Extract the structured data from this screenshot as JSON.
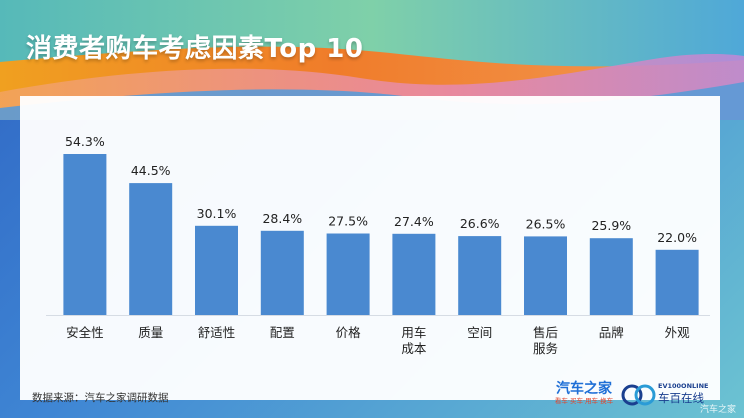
{
  "header": {
    "title": "消费者购车考虑因素Top 10"
  },
  "chart_data": {
    "type": "bar",
    "categories": [
      "安全性",
      "质量",
      "舒适性",
      "配置",
      "价格",
      "用车\n成本",
      "空间",
      "售后\n服务",
      "品牌",
      "外观"
    ],
    "values": [
      54.3,
      44.5,
      30.1,
      28.4,
      27.5,
      27.4,
      26.6,
      26.5,
      25.9,
      22.0
    ],
    "value_labels": [
      "54.3%",
      "44.5%",
      "30.1%",
      "28.4%",
      "27.5%",
      "27.4%",
      "26.6%",
      "26.5%",
      "25.9%",
      "22.0%"
    ],
    "title": "消费者购车考虑因素Top 10",
    "xlabel": "",
    "ylabel": "",
    "unit": "%",
    "ylim": [
      0,
      60
    ],
    "grid": false,
    "colors": {
      "bar": "#4a89d0"
    }
  },
  "footer": {
    "source": "数据来源：汽车之家调研数据"
  },
  "logos": {
    "autohome": {
      "name": "汽车之家",
      "tagline": "看车·买车·用车·换车"
    },
    "chebai": {
      "en": "EV100ONLINE",
      "cn": "车百在线"
    }
  },
  "watermark": {
    "text": "汽车之家"
  },
  "colors": {
    "title": "#ffffff",
    "wave_orange": "#f08a1e",
    "wave_pink": "#e98aa0",
    "wave_teal": "#5cc6b6"
  }
}
